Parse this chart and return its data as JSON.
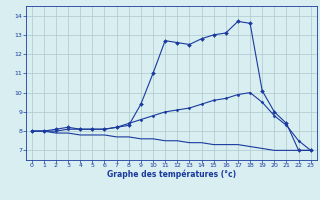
{
  "hours": [
    0,
    1,
    2,
    3,
    4,
    5,
    6,
    7,
    8,
    9,
    10,
    11,
    12,
    13,
    14,
    15,
    16,
    17,
    18,
    19,
    20,
    21,
    22,
    23
  ],
  "line_main": [
    8.0,
    8.0,
    8.1,
    8.2,
    8.1,
    8.1,
    8.1,
    8.2,
    8.3,
    9.4,
    11.0,
    12.7,
    12.6,
    12.5,
    12.8,
    13.0,
    13.1,
    13.7,
    13.6,
    10.1,
    9.0,
    8.4,
    7.0,
    7.0
  ],
  "line_mid": [
    8.0,
    8.0,
    8.0,
    8.1,
    8.1,
    8.1,
    8.1,
    8.2,
    8.4,
    8.6,
    8.8,
    9.0,
    9.1,
    9.2,
    9.4,
    9.6,
    9.7,
    9.9,
    10.0,
    9.5,
    8.8,
    8.3,
    7.5,
    7.0
  ],
  "line_low": [
    8.0,
    8.0,
    7.9,
    7.9,
    7.8,
    7.8,
    7.8,
    7.7,
    7.7,
    7.6,
    7.6,
    7.5,
    7.5,
    7.4,
    7.4,
    7.3,
    7.3,
    7.3,
    7.2,
    7.1,
    7.0,
    7.0,
    7.0,
    7.0
  ],
  "line_color": "#1a3a9e",
  "bg_color": "#d8eef0",
  "grid_color": "#aec8cc",
  "xlabel": "Graphe des températures (°c)",
  "ylim": [
    6.5,
    14.5
  ],
  "xlim": [
    -0.5,
    23.5
  ],
  "yticks": [
    7,
    8,
    9,
    10,
    11,
    12,
    13,
    14
  ],
  "xticks": [
    0,
    1,
    2,
    3,
    4,
    5,
    6,
    7,
    8,
    9,
    10,
    11,
    12,
    13,
    14,
    15,
    16,
    17,
    18,
    19,
    20,
    21,
    22,
    23
  ]
}
